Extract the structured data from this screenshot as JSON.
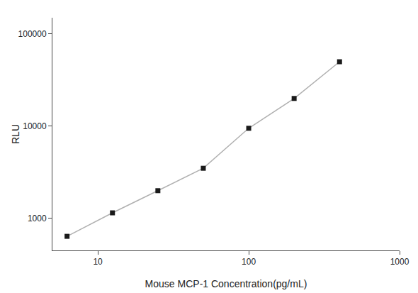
{
  "chart_data": {
    "type": "line",
    "x": [
      6.25,
      12.5,
      25,
      50,
      100,
      200,
      400
    ],
    "values": [
      640,
      1150,
      2000,
      3500,
      9500,
      20000,
      50000
    ],
    "xlabel": "Mouse MCP-1 Concentration(pg/mL)",
    "ylabel": "RLU",
    "xlim": [
      5,
      1000
    ],
    "ylim": [
      450,
      150000
    ],
    "xticks": [
      10,
      100,
      1000
    ],
    "yticks": [
      1000,
      10000,
      100000
    ],
    "log": true,
    "grid": false,
    "color": "#b0b0b0",
    "colors": [
      "#1a1a1a",
      "#1a1a1a",
      "#1a1a1a",
      "#1a1a1a",
      "#1a1a1a",
      "#1a1a1a",
      "#1a1a1a"
    ],
    "marker": "square"
  }
}
